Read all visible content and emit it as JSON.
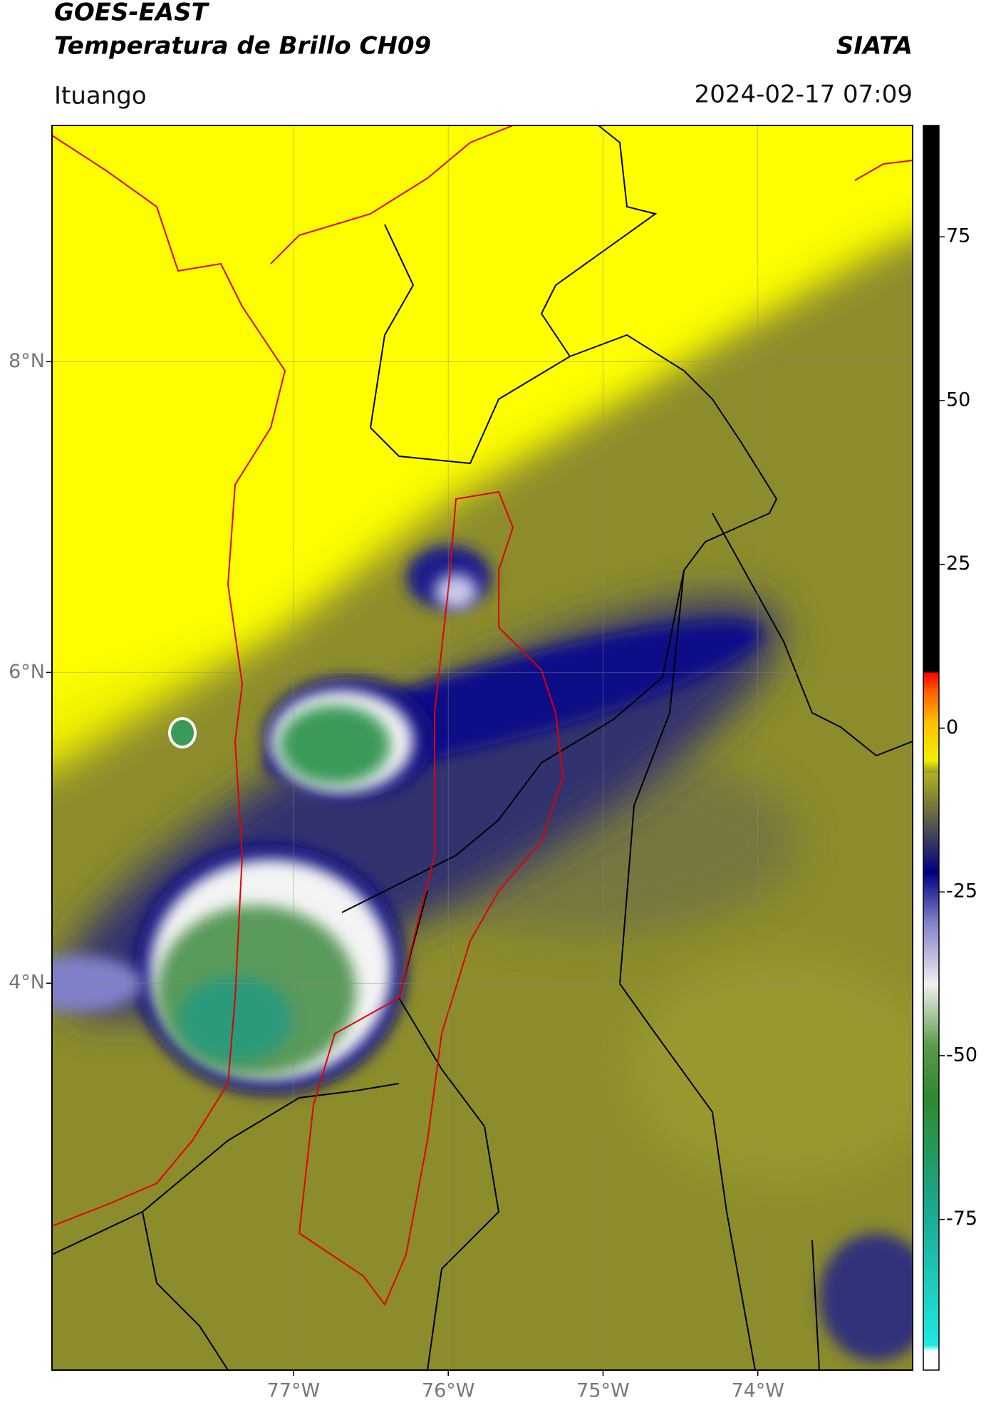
{
  "header": {
    "title": "GOES-EAST",
    "subtitle": "Temperatura de Brillo CH09",
    "source": "SIATA",
    "region": "Ituango",
    "datetime": "2024-02-17 07:09"
  },
  "map": {
    "lonlim": [
      -78.56,
      -73.0
    ],
    "latlim": [
      1.51,
      9.52
    ],
    "xticks": [
      {
        "value": -77,
        "label": "77°W"
      },
      {
        "value": -76,
        "label": "76°W"
      },
      {
        "value": -75,
        "label": "75°W"
      },
      {
        "value": -74,
        "label": "74°W"
      }
    ],
    "yticks": [
      {
        "value": 8,
        "label": "8°N"
      },
      {
        "value": 6,
        "label": "6°N"
      },
      {
        "value": 4,
        "label": "4°N"
      }
    ],
    "grid": true
  },
  "colorbar": {
    "lim": [
      -98,
      92
    ],
    "ticks": [
      75,
      50,
      25,
      0,
      -25,
      -50,
      -75
    ]
  }
}
